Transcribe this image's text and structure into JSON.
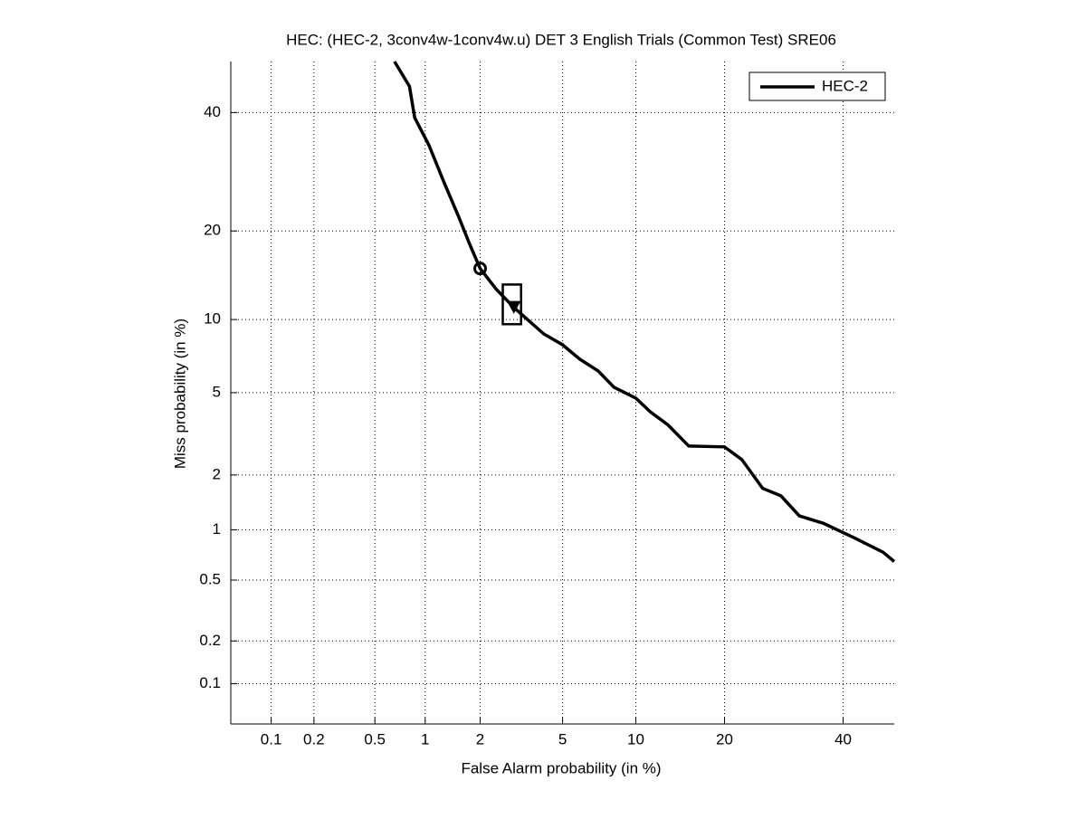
{
  "chart_data": {
    "type": "line",
    "title": "HEC: (HEC-2, 3conv4w-1conv4w.u) DET 3 English Trials (Common Test) SRE06",
    "x_label": "False Alarm probability (in %)",
    "y_label": "Miss probability (in %)",
    "xscale": "probit",
    "yscale": "probit",
    "xlim": [
      0.05,
      50
    ],
    "ylim": [
      0.05,
      50
    ],
    "xticks": [
      0.1,
      0.2,
      0.5,
      1,
      2,
      5,
      10,
      20,
      40
    ],
    "yticks": [
      0.1,
      0.2,
      0.5,
      1,
      2,
      5,
      10,
      20,
      40
    ],
    "grid": true,
    "legend": "upper-right",
    "series": [
      {
        "name": "HEC-2",
        "color": "#000000",
        "x": [
          0.66,
          0.81,
          0.87,
          1.05,
          1.27,
          1.54,
          1.75,
          2.0,
          2.42,
          2.96,
          4.11,
          5.0,
          5.95,
          7.09,
          8.23,
          10,
          11.3,
          13.1,
          15.4,
          20,
          22.5,
          25.7,
          28.7,
          31.9,
          36.3,
          42.1,
          47.8,
          50
        ],
        "values": [
          50,
          45.1,
          39.0,
          33.9,
          27.6,
          22.0,
          18.4,
          15.2,
          12.9,
          11.1,
          8.8,
          7.97,
          6.96,
          6.22,
          5.28,
          4.73,
          4.1,
          3.55,
          2.81,
          2.78,
          2.4,
          1.7,
          1.55,
          1.2,
          1.09,
          0.9,
          0.74,
          0.65
        ]
      }
    ],
    "points": [
      {
        "marker": "circle",
        "x": 2.0,
        "y": 15.2
      },
      {
        "marker": "triangle",
        "x": 2.96,
        "y": 11.1
      }
    ],
    "box": {
      "x": [
        2.61,
        3.21
      ],
      "y": [
        9.6,
        13.4
      ]
    }
  }
}
